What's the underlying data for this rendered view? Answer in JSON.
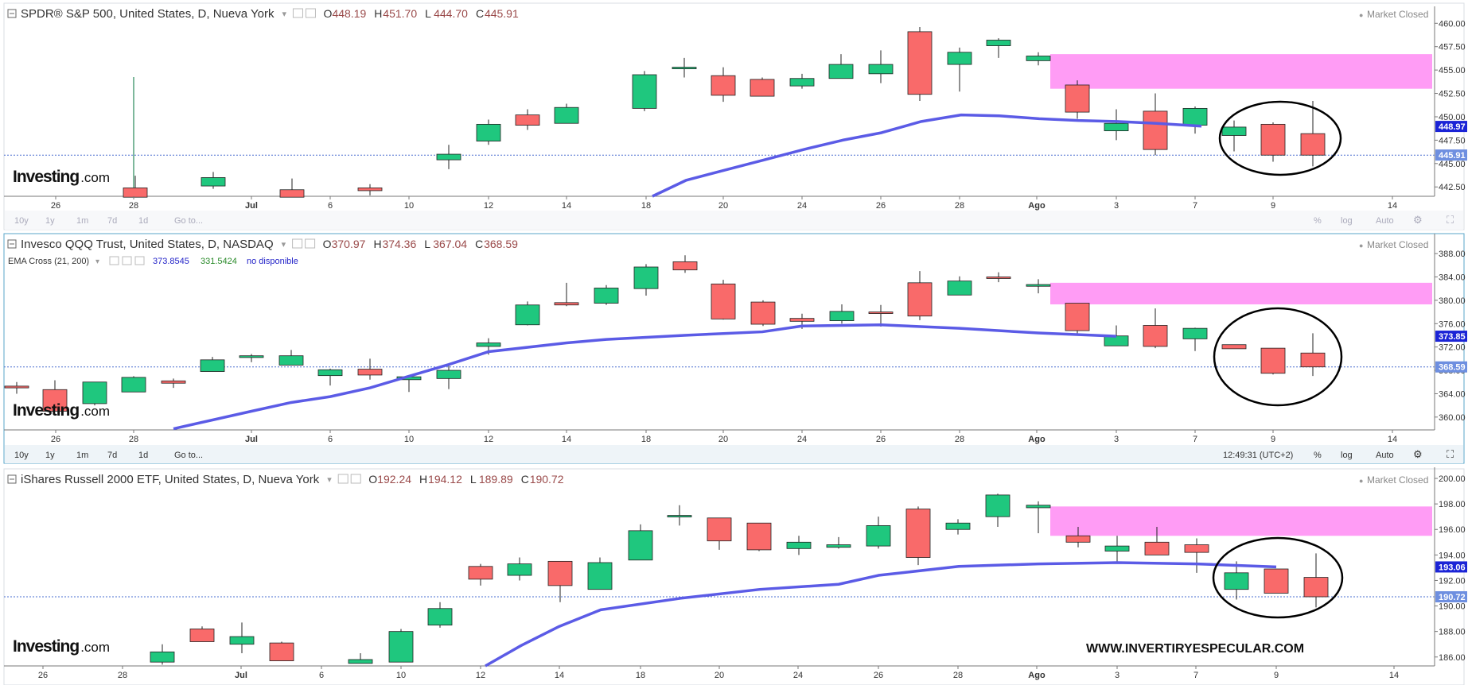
{
  "panels": [
    {
      "id": "spy",
      "title": "SPDR® S&P 500, United States, D, Nueva York",
      "ohlc": {
        "o_label": "O",
        "o": "448.19",
        "h_label": "H",
        "h": "451.70",
        "l_label": "L",
        "l": "444.70",
        "c_label": "C",
        "c": "445.91"
      },
      "status": "Market Closed",
      "indicator": null,
      "price_badge": "448.97",
      "last_badge": "445.91",
      "toolbar": {
        "ranges": [
          "10y",
          "1y",
          "1m",
          "7d",
          "1d"
        ],
        "goto": "Go to...",
        "clock": "",
        "pct": "%",
        "log": "log",
        "auto": "Auto"
      },
      "watermark": "Investing",
      "watermark_suffix": ".com"
    },
    {
      "id": "qqq",
      "title": "Invesco QQQ Trust, United States, D, NASDAQ",
      "ohlc": {
        "o_label": "O",
        "o": "370.97",
        "h_label": "H",
        "h": "374.36",
        "l_label": "L",
        "l": "367.04",
        "c_label": "C",
        "c": "368.59"
      },
      "status": "Market Closed",
      "indicator": {
        "name": "EMA Cross (21, 200)",
        "v1": "373.8545",
        "v2": "331.5424",
        "v3": "no disponible"
      },
      "price_badge": "373.85",
      "last_badge": "368.59",
      "toolbar": {
        "ranges": [
          "10y",
          "1y",
          "1m",
          "7d",
          "1d"
        ],
        "goto": "Go to...",
        "clock": "12:49:31 (UTC+2)",
        "pct": "%",
        "log": "log",
        "auto": "Auto"
      },
      "watermark": "Investing",
      "watermark_suffix": ".com"
    },
    {
      "id": "iwm",
      "title": "iShares Russell 2000 ETF, United States, D, Nueva York",
      "ohlc": {
        "o_label": "O",
        "o": "192.24",
        "h_label": "H",
        "h": "194.12",
        "l_label": "L",
        "l": "189.89",
        "c_label": "C",
        "c": "190.72"
      },
      "status": "Market Closed",
      "indicator": null,
      "price_badge": "193.06",
      "last_badge": "190.72",
      "toolbar": null,
      "watermark": "Investing",
      "watermark_suffix": ".com"
    }
  ],
  "footer_text": "WWW.INVERTIRYESPECULAR.COM",
  "colors": {
    "up": "#1fc77e",
    "down": "#f96a6a",
    "ema": "#5b5be6",
    "zone": "#ff9cf5",
    "badge_ema": "#1b24d6",
    "badge_last": "#6e8fe0",
    "grid_text": "#444444"
  },
  "chart_data": [
    {
      "type": "candlestick",
      "title": "SPDR® S&P 500, United States, D, Nueva York",
      "x_ticks": [
        "26",
        "28",
        "Jul",
        "6",
        "10",
        "12",
        "14",
        "18",
        "20",
        "24",
        "26",
        "28",
        "Ago",
        "3",
        "7",
        "9",
        "14"
      ],
      "y_ticks": [
        "460.00",
        "457.50",
        "455.00",
        "452.50",
        "450.00",
        "447.50",
        "445.00",
        "442.50"
      ],
      "ylim": [
        441.5,
        461.3
      ],
      "candles": [
        {
          "o": 442.4,
          "h": 443.7,
          "l": 441.4,
          "c": 441.4
        },
        {
          "o": 442.6,
          "h": 444.1,
          "l": 442.3,
          "c": 443.5
        },
        {
          "o": 442.2,
          "h": 443.4,
          "l": 441.4,
          "c": 441.4
        },
        {
          "o": 442.4,
          "h": 442.8,
          "l": 441.6,
          "c": 442.1
        },
        {
          "o": 445.4,
          "h": 447.0,
          "l": 444.4,
          "c": 446.0
        },
        {
          "o": 447.4,
          "h": 449.7,
          "l": 447.0,
          "c": 449.2
        },
        {
          "o": 450.2,
          "h": 450.8,
          "l": 448.6,
          "c": 449.1
        },
        {
          "o": 449.3,
          "h": 451.4,
          "l": 449.3,
          "c": 451.0
        },
        {
          "o": 450.9,
          "h": 454.9,
          "l": 450.6,
          "c": 454.5
        },
        {
          "o": 455.2,
          "h": 456.3,
          "l": 454.2,
          "c": 455.3
        },
        {
          "o": 454.4,
          "h": 455.3,
          "l": 451.6,
          "c": 452.3
        },
        {
          "o": 454.0,
          "h": 454.2,
          "l": 452.2,
          "c": 452.2
        },
        {
          "o": 453.3,
          "h": 454.6,
          "l": 453.0,
          "c": 454.1
        },
        {
          "o": 454.1,
          "h": 456.7,
          "l": 454.1,
          "c": 455.6
        },
        {
          "o": 454.6,
          "h": 457.1,
          "l": 453.6,
          "c": 455.6
        },
        {
          "o": 459.1,
          "h": 459.6,
          "l": 451.7,
          "c": 452.4
        },
        {
          "o": 455.6,
          "h": 457.4,
          "l": 452.7,
          "c": 456.9
        },
        {
          "o": 457.6,
          "h": 458.4,
          "l": 456.3,
          "c": 458.2
        },
        {
          "o": 456.0,
          "h": 456.9,
          "l": 455.5,
          "c": 456.5
        },
        {
          "o": 453.4,
          "h": 453.9,
          "l": 449.8,
          "c": 450.5
        },
        {
          "o": 448.5,
          "h": 450.8,
          "l": 447.5,
          "c": 449.3
        },
        {
          "o": 450.6,
          "h": 452.5,
          "l": 445.9,
          "c": 446.5
        },
        {
          "o": 449.1,
          "h": 451.1,
          "l": 448.2,
          "c": 450.9
        },
        {
          "o": 448.0,
          "h": 449.6,
          "l": 446.3,
          "c": 448.9
        },
        {
          "o": 449.2,
          "h": 449.4,
          "l": 445.2,
          "c": 445.9
        },
        {
          "o": 448.2,
          "h": 451.7,
          "l": 444.7,
          "c": 445.9
        }
      ],
      "ema": [
        441.5,
        443.2,
        444.3,
        445.4,
        446.5,
        447.5,
        448.3,
        449.5,
        450.2,
        450.1,
        449.8,
        449.6,
        449.5,
        449.3,
        449.0
      ],
      "zone": [
        453.0,
        456.7
      ]
    },
    {
      "type": "candlestick",
      "title": "Invesco QQQ Trust, United States, D, NASDAQ",
      "x_ticks": [
        "26",
        "28",
        "Jul",
        "6",
        "10",
        "12",
        "14",
        "18",
        "20",
        "24",
        "26",
        "28",
        "Ago",
        "3",
        "7",
        "9",
        "14"
      ],
      "y_ticks": [
        "388.00",
        "384.00",
        "380.00",
        "376.00",
        "372.00",
        "368.00",
        "364.00",
        "360.00"
      ],
      "ylim": [
        357.8,
        390.6
      ],
      "candles": [
        {
          "o": 365.3,
          "h": 366.0,
          "l": 364.0,
          "c": 365.0
        },
        {
          "o": 364.7,
          "h": 366.3,
          "l": 361.0,
          "c": 361.0
        },
        {
          "o": 362.3,
          "h": 366.0,
          "l": 362.0,
          "c": 366.0
        },
        {
          "o": 364.3,
          "h": 367.0,
          "l": 364.3,
          "c": 366.8
        },
        {
          "o": 366.2,
          "h": 366.6,
          "l": 365.0,
          "c": 365.8
        },
        {
          "o": 367.8,
          "h": 370.3,
          "l": 367.8,
          "c": 369.8
        },
        {
          "o": 370.2,
          "h": 370.8,
          "l": 369.4,
          "c": 370.5
        },
        {
          "o": 368.9,
          "h": 371.5,
          "l": 368.9,
          "c": 370.5
        },
        {
          "o": 367.1,
          "h": 368.3,
          "l": 365.4,
          "c": 368.1
        },
        {
          "o": 368.2,
          "h": 370.0,
          "l": 366.4,
          "c": 367.2
        },
        {
          "o": 366.4,
          "h": 367.0,
          "l": 364.3,
          "c": 366.9
        },
        {
          "o": 366.6,
          "h": 368.8,
          "l": 364.8,
          "c": 368.0
        },
        {
          "o": 372.1,
          "h": 373.5,
          "l": 370.7,
          "c": 372.7
        },
        {
          "o": 375.8,
          "h": 379.8,
          "l": 375.7,
          "c": 379.2
        },
        {
          "o": 379.6,
          "h": 383.0,
          "l": 379.0,
          "c": 379.2
        },
        {
          "o": 379.5,
          "h": 382.6,
          "l": 379.2,
          "c": 382.1
        },
        {
          "o": 382.0,
          "h": 386.2,
          "l": 380.8,
          "c": 385.7
        },
        {
          "o": 386.6,
          "h": 387.7,
          "l": 384.7,
          "c": 385.2
        },
        {
          "o": 382.8,
          "h": 383.5,
          "l": 376.7,
          "c": 376.8
        },
        {
          "o": 379.7,
          "h": 380.0,
          "l": 375.6,
          "c": 375.9
        },
        {
          "o": 376.9,
          "h": 377.7,
          "l": 375.1,
          "c": 376.4
        },
        {
          "o": 376.5,
          "h": 379.3,
          "l": 376.0,
          "c": 378.1
        },
        {
          "o": 378.0,
          "h": 379.2,
          "l": 375.5,
          "c": 377.8
        },
        {
          "o": 383.0,
          "h": 385.0,
          "l": 376.6,
          "c": 377.3
        },
        {
          "o": 380.9,
          "h": 384.1,
          "l": 380.9,
          "c": 383.3
        },
        {
          "o": 384.0,
          "h": 384.8,
          "l": 383.1,
          "c": 383.8
        },
        {
          "o": 382.4,
          "h": 383.6,
          "l": 381.2,
          "c": 382.7
        },
        {
          "o": 379.5,
          "h": 379.5,
          "l": 374.3,
          "c": 374.8
        },
        {
          "o": 372.2,
          "h": 375.7,
          "l": 372.2,
          "c": 373.9
        },
        {
          "o": 375.7,
          "h": 378.6,
          "l": 371.8,
          "c": 372.1
        },
        {
          "o": 373.4,
          "h": 375.3,
          "l": 371.3,
          "c": 375.2
        },
        {
          "o": 372.4,
          "h": 372.4,
          "l": 371.7,
          "c": 371.7
        },
        {
          "o": 371.8,
          "h": 371.8,
          "l": 367.3,
          "c": 367.5
        },
        {
          "o": 370.97,
          "h": 374.36,
          "l": 367.04,
          "c": 368.59
        }
      ],
      "ema": [
        358.0,
        361.0,
        362.5,
        363.5,
        365.0,
        367.0,
        369.0,
        371.2,
        372.7,
        373.3,
        374.0,
        374.6,
        375.6,
        375.8,
        375.2,
        374.4,
        373.85
      ],
      "zone": [
        379.3,
        383.0
      ]
    },
    {
      "type": "candlestick",
      "title": "iShares Russell 2000 ETF, United States, D, Nueva York",
      "x_ticks": [
        "26",
        "28",
        "Jul",
        "6",
        "10",
        "12",
        "14",
        "18",
        "20",
        "24",
        "26",
        "28",
        "Ago",
        "3",
        "7",
        "9",
        "14"
      ],
      "y_ticks": [
        "200.00",
        "198.00",
        "196.00",
        "194.00",
        "192.00",
        "190.00",
        "188.00",
        "186.00"
      ],
      "ylim": [
        185.3,
        200.5
      ],
      "candles": [
        {
          "o": 185.6,
          "h": 187.0,
          "l": 185.4,
          "c": 186.4
        },
        {
          "o": 188.2,
          "h": 188.4,
          "l": 187.2,
          "c": 187.2
        },
        {
          "o": 187.0,
          "h": 188.7,
          "l": 186.3,
          "c": 187.6
        },
        {
          "o": 187.1,
          "h": 187.2,
          "l": 185.7,
          "c": 185.7
        },
        {
          "o": 185.5,
          "h": 186.3,
          "l": 185.5,
          "c": 185.8
        },
        {
          "o": 185.6,
          "h": 188.2,
          "l": 185.6,
          "c": 188.0
        },
        {
          "o": 188.5,
          "h": 190.3,
          "l": 188.3,
          "c": 189.8
        },
        {
          "o": 193.1,
          "h": 193.3,
          "l": 191.6,
          "c": 192.1
        },
        {
          "o": 192.4,
          "h": 193.8,
          "l": 192.0,
          "c": 193.3
        },
        {
          "o": 193.5,
          "h": 193.5,
          "l": 190.3,
          "c": 191.6
        },
        {
          "o": 191.3,
          "h": 193.8,
          "l": 191.3,
          "c": 193.4
        },
        {
          "o": 193.6,
          "h": 196.4,
          "l": 193.6,
          "c": 195.9
        },
        {
          "o": 197.1,
          "h": 197.9,
          "l": 196.3,
          "c": 197.1
        },
        {
          "o": 196.9,
          "h": 196.9,
          "l": 194.4,
          "c": 195.1
        },
        {
          "o": 196.5,
          "h": 196.5,
          "l": 194.3,
          "c": 194.4
        },
        {
          "o": 194.5,
          "h": 195.5,
          "l": 194.0,
          "c": 195.0
        },
        {
          "o": 194.6,
          "h": 195.4,
          "l": 194.5,
          "c": 194.8
        },
        {
          "o": 194.7,
          "h": 197.0,
          "l": 194.5,
          "c": 196.3
        },
        {
          "o": 197.6,
          "h": 197.8,
          "l": 193.2,
          "c": 193.8
        },
        {
          "o": 196.0,
          "h": 196.8,
          "l": 195.6,
          "c": 196.5
        },
        {
          "o": 197.0,
          "h": 198.8,
          "l": 196.2,
          "c": 198.7
        },
        {
          "o": 197.7,
          "h": 198.2,
          "l": 195.7,
          "c": 197.9
        },
        {
          "o": 195.5,
          "h": 196.2,
          "l": 194.6,
          "c": 195.0
        },
        {
          "o": 194.3,
          "h": 195.5,
          "l": 193.4,
          "c": 194.7
        },
        {
          "o": 195.0,
          "h": 196.2,
          "l": 194.0,
          "c": 194.0
        },
        {
          "o": 194.8,
          "h": 195.3,
          "l": 192.6,
          "c": 194.2
        },
        {
          "o": 191.3,
          "h": 193.5,
          "l": 190.5,
          "c": 192.6
        },
        {
          "o": 192.9,
          "h": 192.9,
          "l": 191.0,
          "c": 191.0
        },
        {
          "o": 192.24,
          "h": 194.12,
          "l": 189.89,
          "c": 190.72
        }
      ],
      "ema": [
        185.3,
        186.9,
        188.4,
        189.7,
        190.6,
        191.3,
        191.7,
        192.4,
        193.1,
        193.3,
        193.4,
        193.3,
        193.06
      ],
      "zone": [
        195.5,
        197.8
      ]
    }
  ]
}
